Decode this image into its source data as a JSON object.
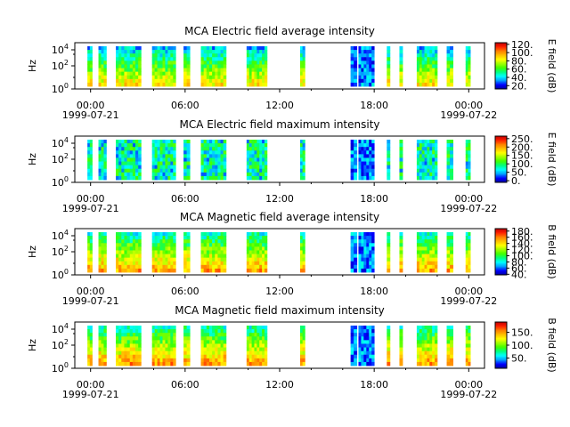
{
  "colors": {
    "colormap": [
      "#0000a0",
      "#0000ff",
      "#00a0ff",
      "#00ffff",
      "#00ff80",
      "#40ff00",
      "#a0ff00",
      "#ffff00",
      "#ffc000",
      "#ff8000",
      "#ff2000",
      "#c00000"
    ]
  },
  "chart_data": [
    {
      "type": "heatmap",
      "title": "MCA  Electric field average intensity",
      "ylabel": "Hz",
      "cbar_label": "E field (dB)",
      "yticks": [
        "10^0",
        "10^2",
        "10^4"
      ],
      "cbar_range": [
        12,
        124
      ],
      "cbar_ticks": [
        20,
        40,
        60,
        80,
        100,
        120
      ],
      "cbar_tick_labels": [
        "20.",
        "40.",
        "60.",
        "80.",
        "100.",
        "120."
      ],
      "xticks": [
        "00:00",
        "06:00",
        "12:00",
        "18:00",
        "00:00"
      ],
      "xdates": [
        "1999-07-21",
        "1999-07-22"
      ],
      "xlim_hours": [
        -1,
        25
      ],
      "base_level": 60
    },
    {
      "type": "heatmap",
      "title": "MCA  Electric field maximum intensity",
      "ylabel": "Hz",
      "cbar_label": "E field (dB)",
      "yticks": [
        "10^0",
        "10^2",
        "10^4"
      ],
      "cbar_range": [
        -10,
        265
      ],
      "cbar_ticks": [
        0,
        50,
        100,
        150,
        200,
        250
      ],
      "cbar_tick_labels": [
        "0.",
        "50.",
        "100.",
        "150.",
        "200.",
        "250."
      ],
      "xticks": [
        "00:00",
        "06:00",
        "12:00",
        "18:00",
        "00:00"
      ],
      "xdates": [
        "1999-07-21",
        "1999-07-22"
      ],
      "xlim_hours": [
        -1,
        25
      ],
      "base_level": 85
    },
    {
      "type": "heatmap",
      "title": "MCA  Magnetic field average intensity",
      "ylabel": "Hz",
      "cbar_label": "B field (dB)",
      "yticks": [
        "10^0",
        "10^2",
        "10^4"
      ],
      "cbar_range": [
        38,
        188
      ],
      "cbar_ticks": [
        40,
        60,
        80,
        100,
        120,
        140,
        160,
        180
      ],
      "cbar_tick_labels": [
        "40.",
        "60.",
        "80.",
        "100.",
        "120.",
        "140.",
        "160.",
        "180."
      ],
      "xticks": [
        "00:00",
        "06:00",
        "12:00",
        "18:00",
        "00:00"
      ],
      "xdates": [
        "1999-07-21",
        "1999-07-22"
      ],
      "xlim_hours": [
        -1,
        25
      ],
      "base_level": 115
    },
    {
      "type": "heatmap",
      "title": "MCA  Magnetic field maximum intensity",
      "ylabel": "Hz",
      "cbar_label": "B field (dB)",
      "yticks": [
        "10^0",
        "10^2",
        "10^4"
      ],
      "cbar_range": [
        10,
        190
      ],
      "cbar_ticks": [
        50,
        100,
        150
      ],
      "cbar_tick_labels": [
        "50.",
        "100.",
        "150."
      ],
      "xticks": [
        "00:00",
        "06:00",
        "12:00",
        "18:00",
        "00:00"
      ],
      "xdates": [
        "1999-07-21",
        "1999-07-22"
      ],
      "xlim_hours": [
        -1,
        25
      ],
      "base_level": 105
    }
  ],
  "data_segments_hours": [
    [
      -0.2,
      0.1
    ],
    [
      0.5,
      1.0
    ],
    [
      1.6,
      3.2
    ],
    [
      3.9,
      5.4
    ],
    [
      5.9,
      6.3
    ],
    [
      7.0,
      8.6
    ],
    [
      9.9,
      11.2
    ],
    [
      13.3,
      13.6
    ],
    [
      16.5,
      16.9
    ],
    [
      17.0,
      18.0
    ],
    [
      18.8,
      19.0
    ],
    [
      19.6,
      19.8
    ],
    [
      20.7,
      22.0
    ],
    [
      22.6,
      23.0
    ],
    [
      23.8,
      24.1
    ]
  ]
}
